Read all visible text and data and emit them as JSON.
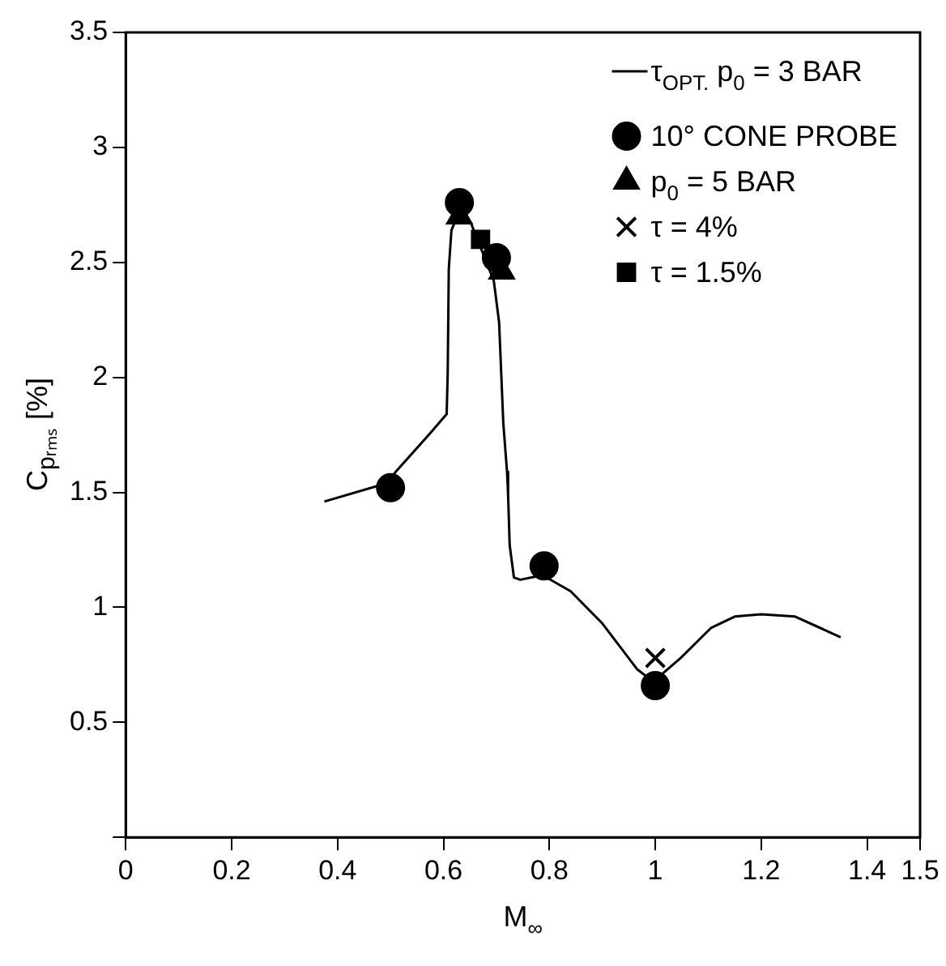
{
  "chart_data": {
    "type": "scatter",
    "xlabel": "M$_{∞}$",
    "ylabel": "C$_{pᵣₘₛ}$ [%]",
    "xlim": [
      0,
      1.5
    ],
    "xticks": [
      0,
      0.2,
      0.4,
      0.6,
      0.8,
      1.0,
      1.2,
      1.4,
      1.5
    ],
    "ylim": [
      0,
      3.5
    ],
    "yticks": [
      {
        "value": 0,
        "label": null
      },
      0.5,
      1.0,
      1.5,
      2.0,
      2.5,
      3.0,
      3.5
    ],
    "grid": false,
    "legend": "top right",
    "series": [
      {
        "name": "τ$_{OPT.}$ p$_{0}$ = 3 BAR",
        "type": "line",
        "marker": "none",
        "color": "#000000",
        "x": [
          0.375,
          0.493,
          0.51,
          0.576,
          0.606,
          0.608,
          0.61,
          0.615,
          0.626,
          0.652,
          0.695,
          0.705,
          0.713,
          0.72,
          0.722,
          0.725,
          0.733,
          0.745,
          0.787,
          0.84,
          0.9,
          0.966,
          0.983,
          1.013,
          1.048,
          1.105,
          1.15,
          1.2,
          1.264,
          1.35
        ],
        "values": [
          1.46,
          1.54,
          1.59,
          1.76,
          1.84,
          2.02,
          2.47,
          2.64,
          2.7,
          2.67,
          2.42,
          2.24,
          1.8,
          1.59,
          1.49,
          1.27,
          1.13,
          1.12,
          1.14,
          1.07,
          0.93,
          0.73,
          0.7,
          0.71,
          0.78,
          0.91,
          0.96,
          0.97,
          0.96,
          0.87
        ]
      },
      {
        "name": "10° CONE PROBE",
        "marker": "circle",
        "color": "#000000",
        "x": [
          0.5,
          0.63,
          0.7,
          0.79,
          1.0
        ],
        "values": [
          1.52,
          2.76,
          2.52,
          1.18,
          0.66
        ]
      },
      {
        "name": "p$_{0}$ = 5 BAR",
        "marker": "triangle",
        "color": "#000000",
        "x": [
          0.63,
          0.71
        ],
        "values": [
          2.7,
          2.46
        ]
      },
      {
        "name": "τ = 4%",
        "marker": "cross",
        "color": "#000000",
        "x": [
          1.0
        ],
        "values": [
          0.78
        ]
      },
      {
        "name": "τ = 1.5%",
        "marker": "square",
        "color": "#000000",
        "x": [
          0.67
        ],
        "values": [
          2.6
        ]
      }
    ]
  }
}
